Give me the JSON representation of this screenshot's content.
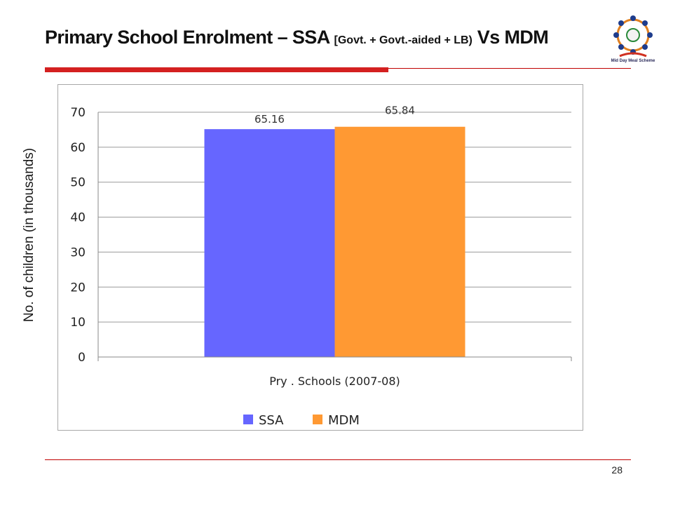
{
  "slide": {
    "title_main": "Primary School Enrolment – SSA ",
    "title_sub": "[Govt. + Govt.-aided + LB)",
    "title_end": " Vs MDM",
    "page_number": "28",
    "logo_text": "Mid Day Meal Scheme"
  },
  "chart_data": {
    "type": "bar",
    "title": "",
    "categories": [
      "Pry . Schools (2007-08)"
    ],
    "series": [
      {
        "name": "SSA",
        "values": [
          65.16
        ],
        "color": "#6666ff"
      },
      {
        "name": "MDM",
        "values": [
          65.84
        ],
        "color": "#ff9933"
      }
    ],
    "data_labels": [
      "65.16",
      "65.84"
    ],
    "xlabel": "Pry . Schools (2007-08)",
    "ylabel": "No. of children (in thousands)",
    "ylim": [
      0,
      70
    ],
    "yticks": [
      0,
      10,
      20,
      30,
      40,
      50,
      60,
      70
    ],
    "grid": true,
    "legend_position": "bottom"
  }
}
